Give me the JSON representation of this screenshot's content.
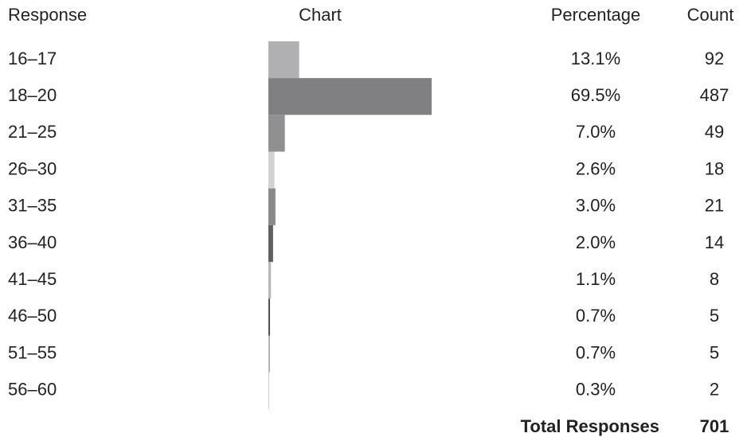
{
  "chart_data": {
    "type": "bar",
    "headers": {
      "response": "Response",
      "chart": "Chart",
      "percentage": "Percentage",
      "count": "Count"
    },
    "categories": [
      "16–17",
      "18–20",
      "21–25",
      "26–30",
      "31–35",
      "36–40",
      "41–45",
      "46–50",
      "51–55",
      "56–60"
    ],
    "values": [
      13.1,
      69.5,
      7.0,
      2.6,
      3.0,
      2.0,
      1.1,
      0.7,
      0.7,
      0.3
    ],
    "value_labels": [
      "13.1%",
      "69.5%",
      "7.0%",
      "2.6%",
      "3.0%",
      "2.0%",
      "1.1%",
      "0.7%",
      "0.7%",
      "0.3%"
    ],
    "counts": [
      92,
      487,
      49,
      18,
      21,
      14,
      8,
      5,
      5,
      2
    ],
    "colors": [
      "#b0b0b2",
      "#808083",
      "#909093",
      "#d2d2d4",
      "#8a8a8c",
      "#606063",
      "#b8b8ba",
      "#505052",
      "#b4b4b6",
      "#c4c4c6"
    ],
    "total_label": "Total Responses",
    "total": 701
  }
}
